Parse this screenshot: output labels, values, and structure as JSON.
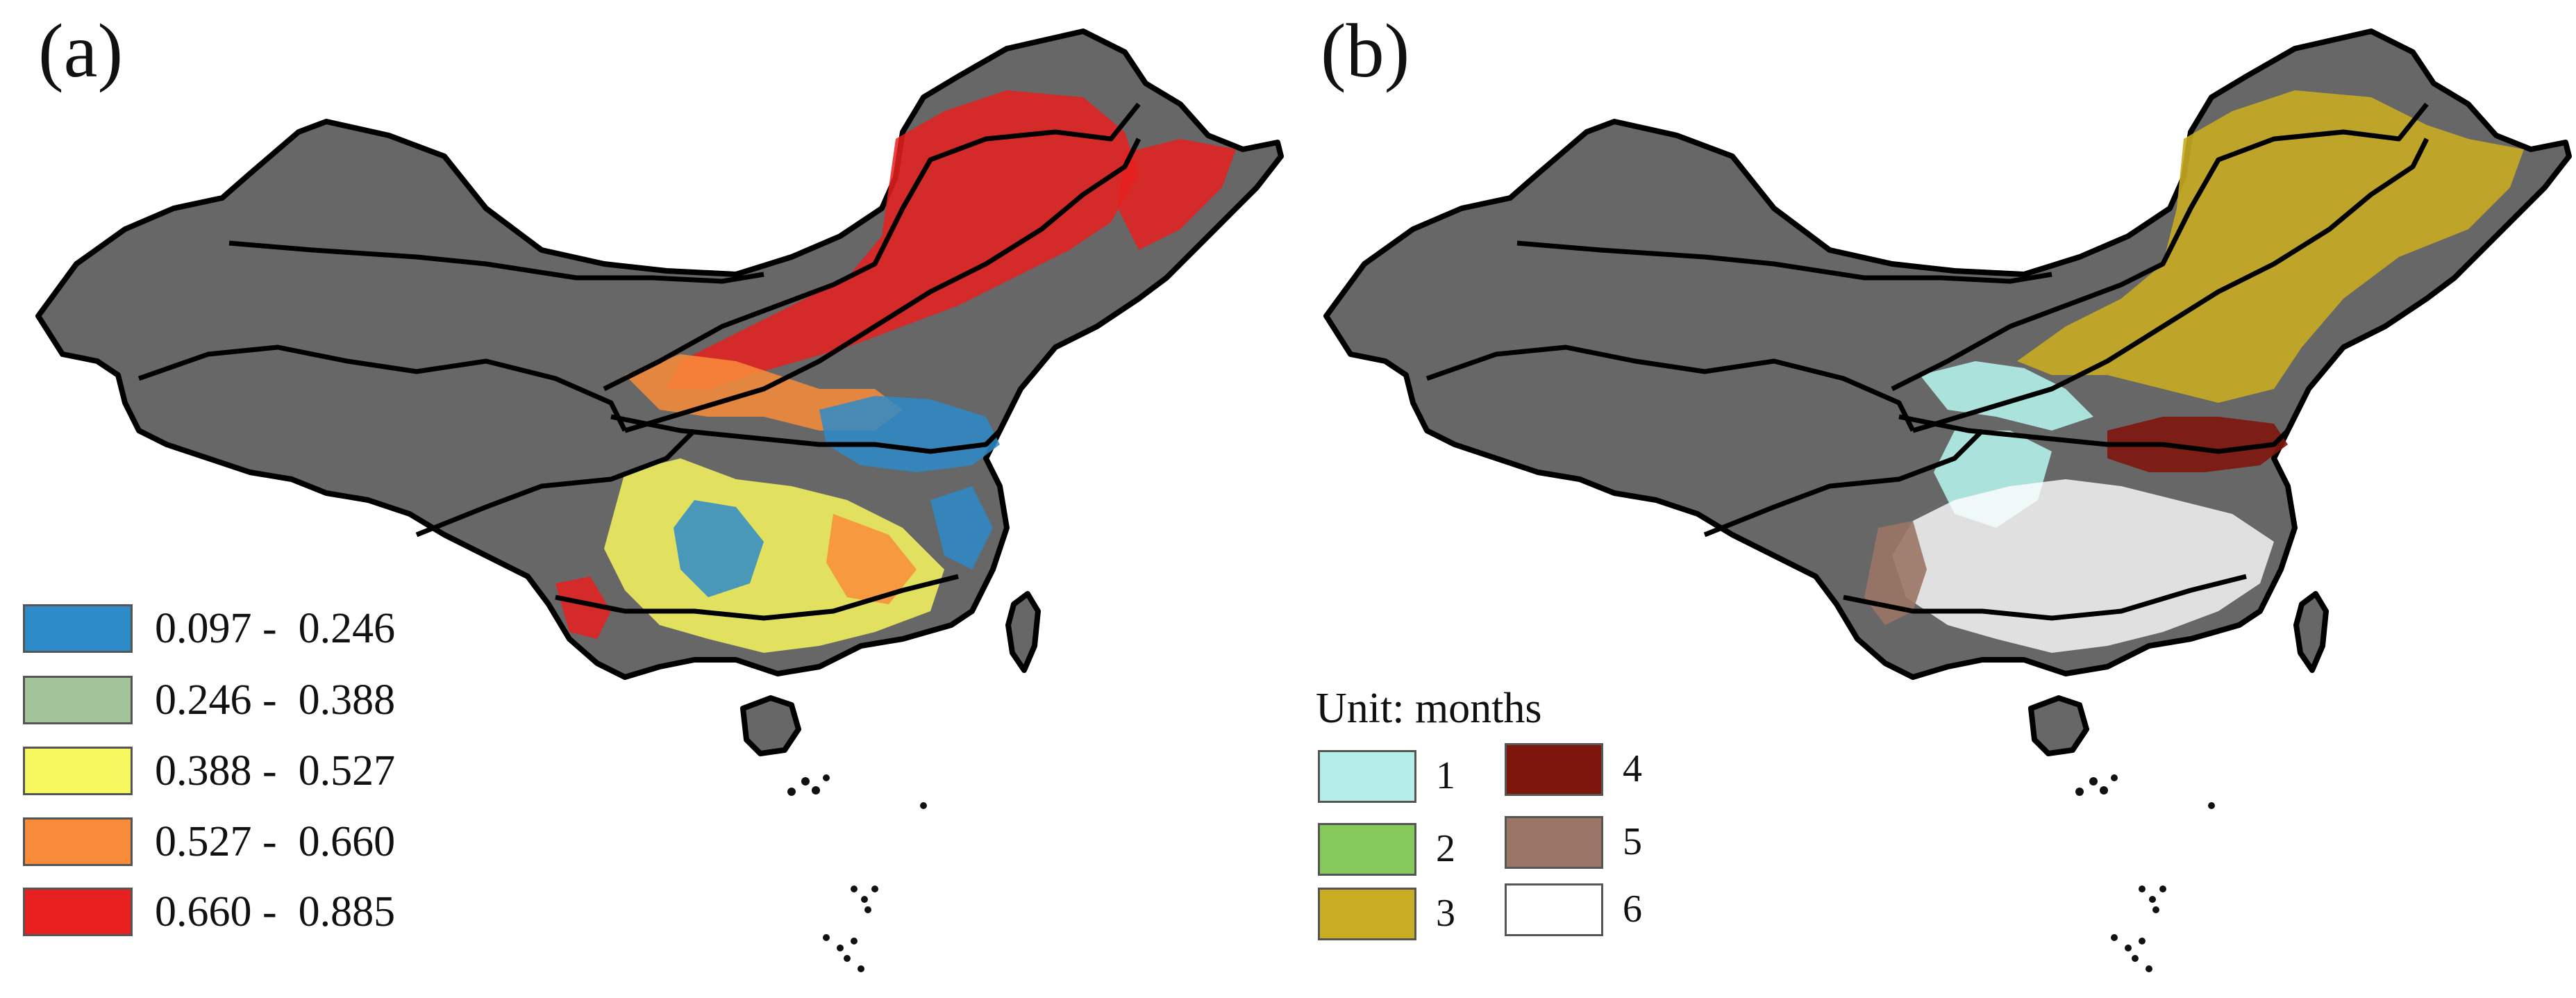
{
  "panels": {
    "a": {
      "label": "(a)",
      "legend": [
        {
          "range": "0.097 -  0.246",
          "color": "#2e8bc9"
        },
        {
          "range": "0.246 -  0.388",
          "color": "#a3c49b"
        },
        {
          "range": "0.388 -  0.527",
          "color": "#f7f75e"
        },
        {
          "range": "0.527 -  0.660",
          "color": "#f98c3a"
        },
        {
          "range": "0.660 -  0.885",
          "color": "#e8201f"
        }
      ]
    },
    "b": {
      "label": "(b)",
      "unit": "Unit: months",
      "legend": [
        {
          "value": "1",
          "color": "#b3efe8"
        },
        {
          "value": "2",
          "color": "#86c95b"
        },
        {
          "value": "3",
          "color": "#c8ac22"
        },
        {
          "value": "4",
          "color": "#7e160c"
        },
        {
          "value": "5",
          "color": "#9a7565"
        },
        {
          "value": "6",
          "color": "#ffffff"
        }
      ]
    }
  },
  "map": {
    "land_color": "#676767",
    "boundary_color": "#000000"
  }
}
